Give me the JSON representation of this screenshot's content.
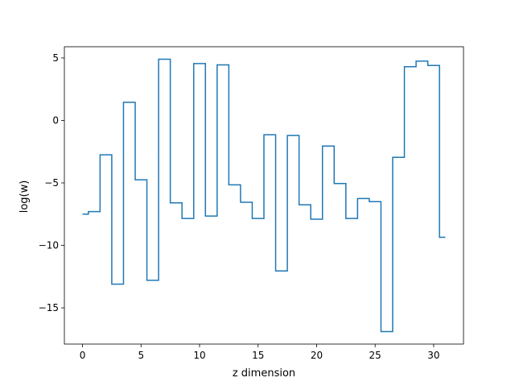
{
  "chart_data": {
    "type": "line",
    "drawstyle": "steps-mid",
    "title": "",
    "xlabel": "z dimension",
    "ylabel": "log(w)",
    "xlim": [
      -1.55,
      32.55
    ],
    "ylim": [
      -17.9,
      5.9
    ],
    "xticks": [
      0,
      5,
      10,
      15,
      20,
      25,
      30
    ],
    "yticks": [
      5,
      0,
      -5,
      -10,
      -15
    ],
    "ytick_labels": [
      "5",
      "0",
      "−5",
      "−10",
      "−15"
    ],
    "grid": false,
    "line_color": "#1f77b4",
    "x": [
      0,
      1,
      2,
      3,
      4,
      5,
      6,
      7,
      8,
      9,
      10,
      11,
      12,
      13,
      14,
      15,
      16,
      17,
      18,
      19,
      20,
      21,
      22,
      23,
      24,
      25,
      26,
      27,
      28,
      29,
      30,
      31
    ],
    "values": [
      -7.5,
      -7.3,
      -2.75,
      -13.1,
      1.45,
      -4.75,
      -12.8,
      4.9,
      -6.6,
      -7.85,
      4.55,
      -7.65,
      4.45,
      -5.15,
      -6.55,
      -7.85,
      -1.15,
      -12.05,
      -1.2,
      -6.75,
      -7.9,
      -2.05,
      -5.05,
      -7.85,
      -6.25,
      -6.5,
      -16.9,
      -2.95,
      4.3,
      4.75,
      4.4,
      -9.35
    ]
  }
}
